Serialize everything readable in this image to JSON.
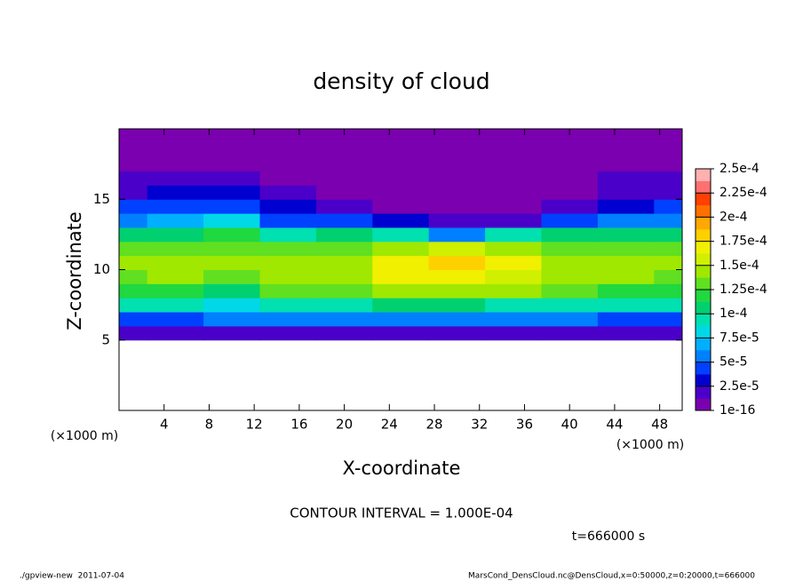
{
  "chart_data": {
    "type": "contour",
    "title": "density of cloud",
    "xlabel": "X-coordinate",
    "ylabel": "Z-coordinate",
    "xunit": "(×1000 m)",
    "yunit": "(×1000 m)",
    "xlim": [
      0,
      50
    ],
    "ylim": [
      0,
      20
    ],
    "xticks": [
      4,
      8,
      12,
      16,
      20,
      24,
      28,
      32,
      36,
      40,
      44,
      48
    ],
    "yticks": [
      5,
      10,
      15
    ],
    "x": [
      0,
      5,
      10,
      15,
      20,
      25,
      30,
      35,
      40,
      45,
      50
    ],
    "z": [
      5.5,
      6.5,
      7.5,
      8.5,
      9.5,
      10.5,
      11.5,
      12.5,
      13.5,
      14.5,
      15.5,
      16.5,
      17.5,
      18.5,
      19.5
    ],
    "values": [
      [
        2e-05,
        2e-05,
        1.5e-05,
        2e-05,
        2e-05,
        2e-05,
        2e-05,
        2e-05,
        2e-05,
        2e-05,
        2e-05
      ],
      [
        5e-05,
        5e-05,
        6e-05,
        5.5e-05,
        5.5e-05,
        6e-05,
        6e-05,
        6e-05,
        5.5e-05,
        5e-05,
        5e-05
      ],
      [
        9e-05,
        9e-05,
        8e-05,
        0.0001,
        0.0001,
        0.000105,
        0.000105,
        0.0001,
        9.5e-05,
        9e-05,
        9e-05
      ],
      [
        0.00012,
        0.000125,
        0.00011,
        0.00013,
        0.000135,
        0.000145,
        0.00015,
        0.00014,
        0.00013,
        0.000125,
        0.00012
      ],
      [
        0.000135,
        0.00014,
        0.00013,
        0.000145,
        0.00015,
        0.000165,
        0.000175,
        0.00016,
        0.000145,
        0.00014,
        0.000135
      ],
      [
        0.00014,
        0.000145,
        0.00014,
        0.000145,
        0.00015,
        0.00017,
        0.000185,
        0.000165,
        0.00015,
        0.000145,
        0.00014
      ],
      [
        0.00013,
        0.000135,
        0.000135,
        0.00013,
        0.000135,
        0.00015,
        0.000155,
        0.000145,
        0.000135,
        0.00013,
        0.00013
      ],
      [
        0.000105,
        0.00011,
        0.000115,
        0.0001,
        0.000105,
        0.0001,
        6e-05,
        9e-05,
        0.000105,
        0.000105,
        0.000105
      ],
      [
        6e-05,
        7e-05,
        8e-05,
        5e-05,
        4e-05,
        3e-05,
        1.5e-05,
        2.5e-05,
        4e-05,
        6e-05,
        6e-05
      ],
      [
        4e-05,
        4.5e-05,
        5e-05,
        3e-05,
        2e-05,
        1.2e-05,
        6e-06,
        1e-05,
        2e-05,
        3.5e-05,
        4e-05
      ],
      [
        2.5e-05,
        3e-05,
        3e-05,
        2e-05,
        1.2e-05,
        8e-06,
        3e-06,
        5e-06,
        1.2e-05,
        2.5e-05,
        2.5e-05
      ],
      [
        1.5e-05,
        1.5e-05,
        1.5e-05,
        1.2e-05,
        8e-06,
        5e-06,
        2e-06,
        3e-06,
        8e-06,
        1.5e-05,
        1.5e-05
      ],
      [
        8e-06,
        8e-06,
        8e-06,
        6e-06,
        5e-06,
        3e-06,
        2e-06,
        2e-06,
        5e-06,
        8e-06,
        8e-06
      ],
      [
        3e-06,
        3e-06,
        3e-06,
        3e-06,
        3e-06,
        3e-06,
        2e-06,
        2e-06,
        3e-06,
        3e-06,
        3e-06
      ],
      [
        1e-06,
        1e-06,
        1e-06,
        1e-06,
        1e-06,
        1e-06,
        1e-06,
        1e-06,
        1e-06,
        1e-06,
        1e-06
      ]
    ],
    "levels": [
      {
        "value": 1e-16,
        "label": "1e-16"
      },
      {
        "value": 2.5e-05,
        "label": "2.5e-5"
      },
      {
        "value": 5e-05,
        "label": "5e-5"
      },
      {
        "value": 7.5e-05,
        "label": "7.5e-5"
      },
      {
        "value": 0.0001,
        "label": "1e-4"
      },
      {
        "value": 0.000125,
        "label": "1.25e-4"
      },
      {
        "value": 0.00015,
        "label": "1.5e-4"
      },
      {
        "value": 0.000175,
        "label": "1.75e-4"
      },
      {
        "value": 0.0002,
        "label": "2e-4"
      },
      {
        "value": 0.000225,
        "label": "2.25e-4"
      },
      {
        "value": 0.00025,
        "label": "2.5e-4"
      }
    ],
    "colors": [
      "#7a00b0",
      "#4a00c8",
      "#0000d0",
      "#0040ff",
      "#0080ff",
      "#00b0ff",
      "#00d8e8",
      "#00e0b0",
      "#00d070",
      "#20d840",
      "#60e020",
      "#a0e800",
      "#d0f000",
      "#f0f000",
      "#ffd000",
      "#ffa800",
      "#ff7000",
      "#ff4000",
      "#ff7070",
      "#ffb0b0"
    ],
    "contour_note": "CONTOUR INTERVAL = 1.000E-04",
    "time_note": "t=666000 s",
    "footer_left": "./gpview-new  2011-07-04",
    "footer_right": "MarsCond_DensCloud.nc@DensCloud,x=0:50000,z=0:20000,t=666000"
  }
}
